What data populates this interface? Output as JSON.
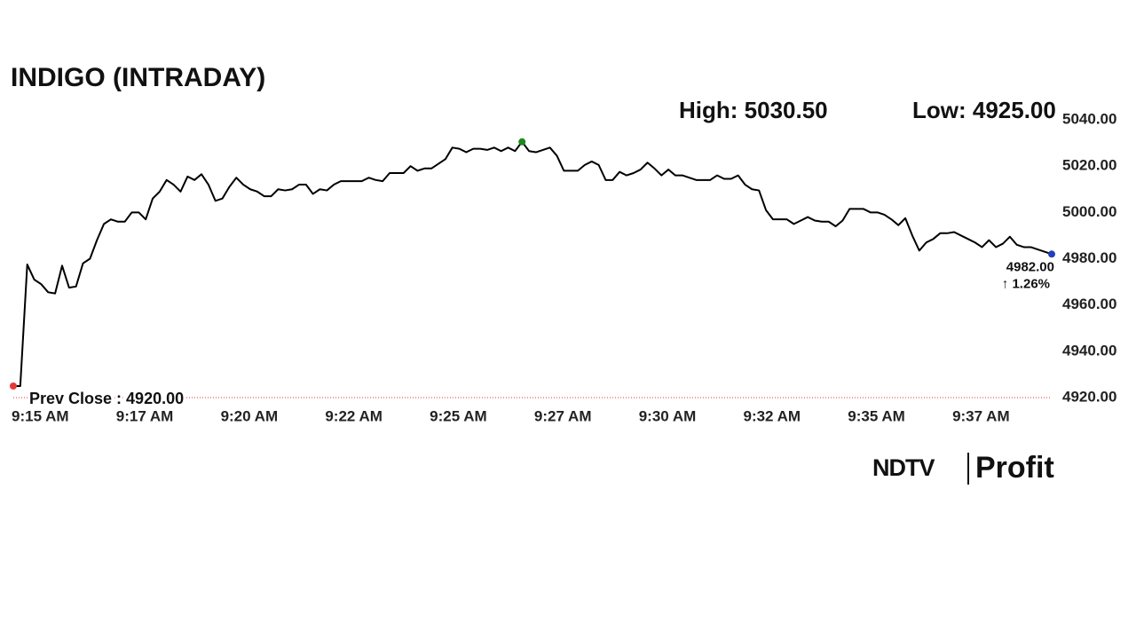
{
  "chart_data": {
    "type": "line",
    "title": "INDIGO (INTRADAY)",
    "high_label": "High: 5030.50",
    "low_label": "Low: 4925.00",
    "categories": [
      "9:15 AM",
      null,
      null,
      null,
      null,
      null,
      null,
      null,
      null,
      null,
      null,
      null,
      null,
      null,
      null,
      "9:17 AM",
      null,
      null,
      null,
      null,
      null,
      null,
      null,
      null,
      null,
      null,
      null,
      null,
      null,
      null,
      "9:20 AM",
      null,
      null,
      null,
      null,
      null,
      null,
      null,
      null,
      null,
      null,
      null,
      null,
      null,
      null,
      "9:22 AM",
      null,
      null,
      null,
      null,
      null,
      null,
      null,
      null,
      null,
      null,
      null,
      null,
      null,
      null,
      "9:25 AM",
      null,
      null,
      null,
      null,
      null,
      null,
      null,
      null,
      null,
      null,
      null,
      null,
      null,
      null,
      "9:27 AM",
      null,
      null,
      null,
      null,
      null,
      null,
      null,
      null,
      null,
      null,
      null,
      null,
      null,
      null,
      "9:30 AM",
      null,
      null,
      null,
      null,
      null,
      null,
      null,
      null,
      null,
      null,
      null,
      null,
      null,
      null,
      "9:32 AM",
      null,
      null,
      null,
      null,
      null,
      null,
      null,
      null,
      null,
      null,
      null,
      null,
      null,
      null,
      "9:35 AM",
      null,
      null,
      null,
      null,
      null,
      null,
      null,
      null,
      null,
      null,
      null,
      null,
      null,
      null,
      "9:37 AM",
      null,
      null,
      null,
      null,
      null,
      null,
      null,
      null,
      null,
      null,
      null,
      null,
      null,
      null
    ],
    "series": [
      {
        "color": "#000000",
        "values": [
          4925,
          4925,
          4977.5,
          4971,
          4969,
          4965.5,
          4965,
          4977,
          4967.5,
          4968,
          4978,
          4980,
          4988,
          4995,
          4997,
          4996,
          4996,
          5000,
          5000,
          4997,
          5006,
          5009,
          5014,
          5012,
          5009,
          5015.5,
          5014,
          5016.5,
          5012,
          5005,
          5006,
          5011,
          5015,
          5012,
          5010,
          5009,
          5007,
          5007,
          5010,
          5009.5,
          5010,
          5012,
          5012,
          5008,
          5010,
          5009.5,
          5012,
          5013.5,
          5013.5,
          5013.5,
          5013.5,
          5015,
          5014,
          5013.5,
          5017,
          5017,
          5017,
          5020,
          5018,
          5019,
          5019,
          5021,
          5023,
          5028,
          5027.5,
          5026,
          5027.5,
          5027.5,
          5027,
          5028,
          5026.5,
          5028,
          5026.5,
          5030.5,
          5026.5,
          5026,
          5027,
          5028,
          5024.5,
          5018,
          5018,
          5018,
          5020.5,
          5022,
          5020.5,
          5014,
          5014,
          5017.5,
          5016,
          5017,
          5018.5,
          5021.5,
          5019,
          5016,
          5018.5,
          5016,
          5016,
          5015,
          5014,
          5014,
          5014,
          5016,
          5014.5,
          5014.5,
          5016,
          5012,
          5010,
          5009.5,
          5001,
          4997,
          4997,
          4997,
          4995,
          4996.5,
          4998,
          4996.5,
          4996,
          4996,
          4994,
          4996.5,
          5001.5,
          5001.5,
          5001.5,
          5000,
          5000,
          4999,
          4997,
          4994.5,
          4997.5,
          4990,
          4983.5,
          4987,
          4988.5,
          4991,
          4991,
          4991.5,
          4990,
          4988.5,
          4987,
          4985,
          4988,
          4985,
          4986.5,
          4989.5,
          4986,
          4985,
          4985,
          4984,
          4983,
          4982
        ]
      }
    ],
    "ylim": [
      4920,
      5040
    ],
    "yticks": [
      {
        "value": 4920,
        "label": "4920.00"
      },
      {
        "value": 4940,
        "label": "4940.00"
      },
      {
        "value": 4960,
        "label": "4960.00"
      },
      {
        "value": 4980,
        "label": "4980.00"
      },
      {
        "value": 5000,
        "label": "5000.00"
      },
      {
        "value": 5020,
        "label": "5020.00"
      },
      {
        "value": 5040,
        "label": "5040.00"
      }
    ],
    "grid": false,
    "prev_close": {
      "value": 4920,
      "label": "Prev Close : 4920.00",
      "color": "#e53935"
    },
    "start_color": "#e53935",
    "high_color": "#1b8a1b",
    "end_color": "#1f3fbf",
    "last_label": "4982.00",
    "change_label": "↑ 1.26%",
    "change_color": "#1b8a1b",
    "brand": [
      "NDTV",
      "Profit"
    ]
  }
}
